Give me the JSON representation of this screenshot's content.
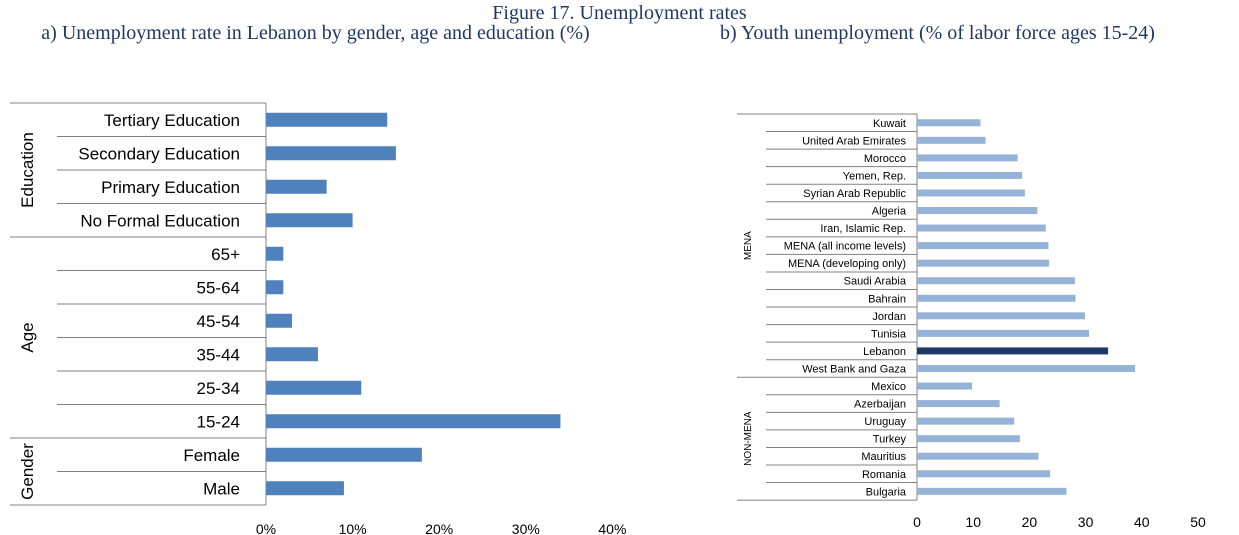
{
  "figure_title": "Figure 17. Unemployment rates",
  "subtitle_a": "a) Unemployment rate in Lebanon by gender, age and education (%)",
  "subtitle_b": "b) Youth unemployment (% of labor force ages 15-24)",
  "colors": {
    "bar_a": "#4f81bd",
    "bar_b": "#95b3d7",
    "bar_b_highlight": "#1f3864"
  },
  "chart_data": [
    {
      "type": "bar",
      "orientation": "horizontal",
      "title": "",
      "xlim": [
        0,
        40
      ],
      "x_ticks": [
        "0%",
        "10%",
        "20%",
        "30%",
        "40%"
      ],
      "groups": [
        {
          "name": "Education",
          "categories": [
            "Tertiary Education",
            "Secondary Education",
            "Primary Education",
            "No Formal Education"
          ],
          "values": [
            14,
            15,
            7,
            10
          ]
        },
        {
          "name": "Age",
          "categories": [
            "65+",
            "55-64",
            "45-54",
            "35-44",
            "25-34",
            "15-24"
          ],
          "values": [
            2,
            2,
            3,
            6,
            11,
            34
          ]
        },
        {
          "name": "Gender",
          "categories": [
            "Female",
            "Male"
          ],
          "values": [
            18,
            9
          ]
        }
      ],
      "grid": false
    },
    {
      "type": "bar",
      "orientation": "horizontal",
      "title": "",
      "xlim": [
        0,
        50
      ],
      "x_ticks": [
        "0",
        "10",
        "20",
        "30",
        "40",
        "50"
      ],
      "highlight": "Lebanon",
      "groups": [
        {
          "name": "MENA",
          "categories": [
            "Kuwait",
            "United Arab Emirates",
            "Morocco",
            "Yemen, Rep.",
            "Syrian Arab Republic",
            "Algeria",
            "Iran, Islamic Rep.",
            "MENA (all income levels)",
            "MENA (developing only)",
            "Saudi Arabia",
            "Bahrain",
            "Jordan",
            "Tunisia",
            "Lebanon",
            "West Bank and Gaza"
          ],
          "values": [
            11.3,
            12.2,
            17.9,
            18.7,
            19.2,
            21.4,
            22.9,
            23.4,
            23.5,
            28.1,
            28.2,
            29.9,
            30.6,
            34.0,
            38.8
          ]
        },
        {
          "name": "NON-MENA",
          "categories": [
            "Mexico",
            "Azerbaijan",
            "Uruguay",
            "Turkey",
            "Mauritius",
            "Romania",
            "Bulgaria"
          ],
          "values": [
            9.8,
            14.7,
            17.3,
            18.3,
            21.6,
            23.7,
            26.6
          ]
        }
      ],
      "grid": false
    }
  ]
}
